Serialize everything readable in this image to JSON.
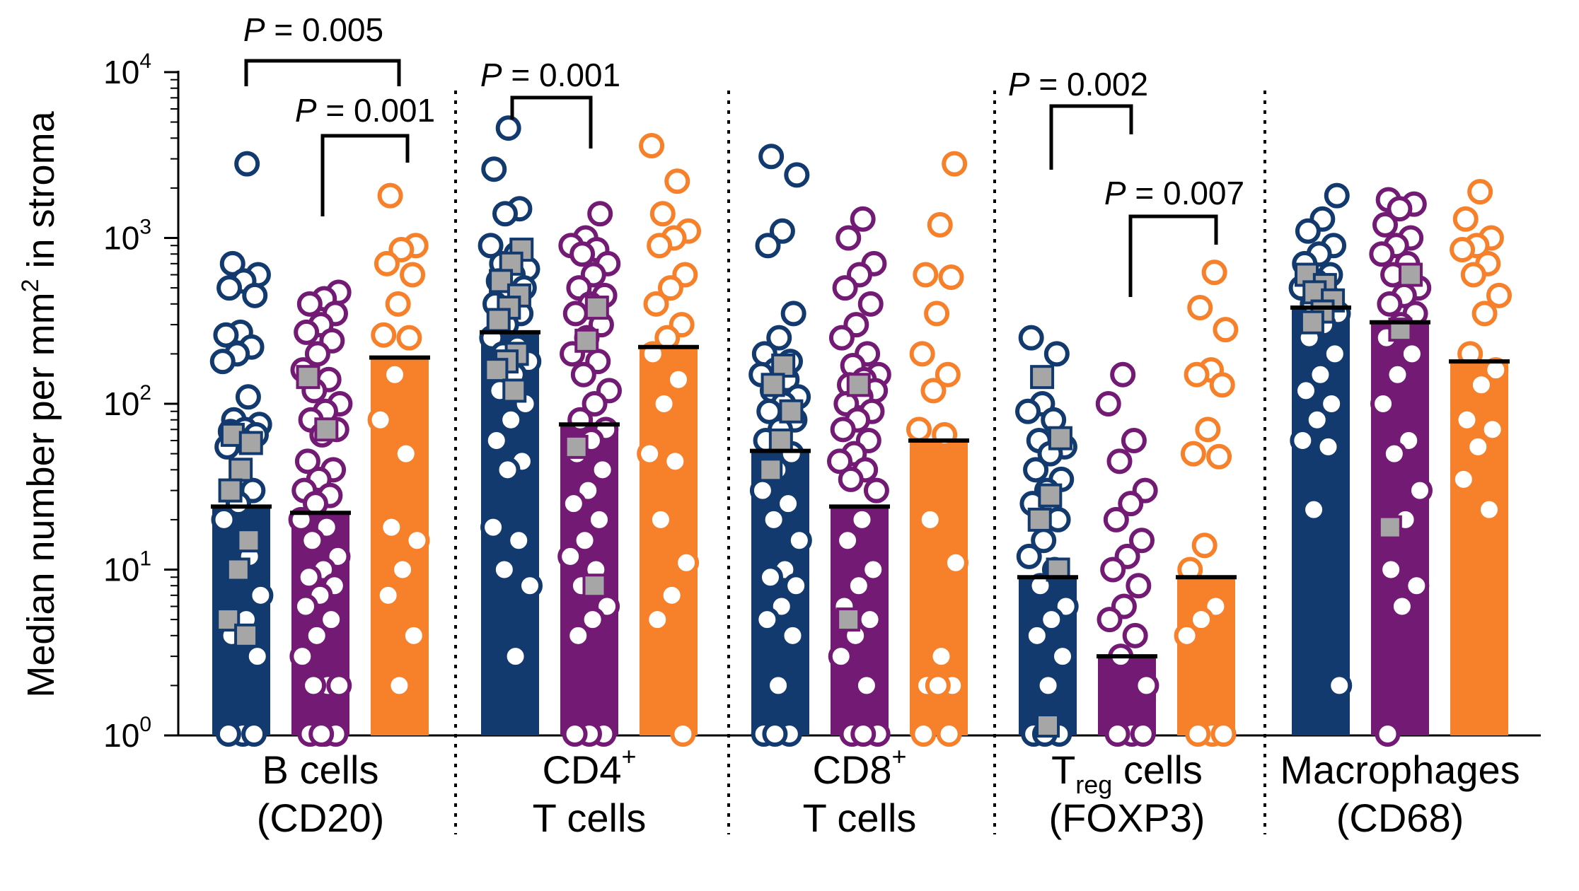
{
  "chart_data": {
    "type": "bar",
    "ylabel": "Median number per mm² in stroma",
    "ylabel_parts": {
      "pre": "Median number per mm",
      "sup": "2",
      "post": " in stroma"
    },
    "y_scale": "log",
    "ylim": [
      1,
      10000
    ],
    "y_ticks": [
      {
        "value": 1,
        "base": "10",
        "exp": "0"
      },
      {
        "value": 10,
        "base": "10",
        "exp": "1"
      },
      {
        "value": 100,
        "base": "10",
        "exp": "2"
      },
      {
        "value": 1000,
        "base": "10",
        "exp": "3"
      },
      {
        "value": 10000,
        "base": "10",
        "exp": "4"
      }
    ],
    "colors": {
      "navy": "#123a6e",
      "purple": "#731a75",
      "orange": "#f7802a",
      "square": "#a6a6a6",
      "median_line": "#000000"
    },
    "groups": [
      {
        "label_lines": [
          {
            "text": "B cells"
          },
          {
            "text": "(CD20)"
          }
        ],
        "bars": [
          {
            "color": "navy",
            "median": 24,
            "circles": [
              2800,
              700,
              600,
              550,
              500,
              450,
              270,
              260,
              220,
              200,
              180,
              110,
              80,
              75,
              70,
              68,
              65,
              60,
              55,
              30,
              25,
              20,
              12,
              10,
              7,
              5,
              4,
              3,
              1,
              1,
              1
            ],
            "squares": [
              65,
              58,
              40,
              30,
              15,
              10,
              5,
              4
            ]
          },
          {
            "color": "purple",
            "median": 22,
            "circles": [
              470,
              430,
              400,
              350,
              300,
              270,
              240,
              200,
              160,
              140,
              120,
              100,
              90,
              80,
              70,
              65,
              45,
              40,
              35,
              30,
              28,
              25,
              20,
              18,
              15,
              12,
              10,
              9,
              8,
              7,
              6,
              5,
              4,
              3,
              2,
              2,
              2,
              1,
              1,
              1,
              1
            ],
            "squares": [
              145,
              70
            ]
          },
          {
            "color": "orange",
            "median": 190,
            "circles": [
              1800,
              900,
              850,
              700,
              600,
              400,
              260,
              250,
              150,
              80,
              50,
              18,
              15,
              10,
              7,
              4,
              2
            ],
            "squares": []
          }
        ],
        "brackets": [
          {
            "text": "P = 0.005",
            "p_prefix": "P",
            "p_rest": " = 0.005",
            "from": 0,
            "to": 2
          },
          {
            "text": "P = 0.001",
            "p_prefix": "P",
            "p_rest": " = 0.001",
            "from": 1,
            "to": 2
          }
        ]
      },
      {
        "label_lines": [
          {
            "text": "CD4",
            "sup": "+"
          },
          {
            "text": "T cells"
          }
        ],
        "bars": [
          {
            "color": "navy",
            "median": 270,
            "circles": [
              4600,
              2600,
              1500,
              1400,
              900,
              800,
              700,
              650,
              600,
              550,
              500,
              450,
              400,
              350,
              300,
              250,
              220,
              200,
              180,
              150,
              120,
              100,
              80,
              60,
              45,
              40,
              18,
              15,
              10,
              8,
              3
            ],
            "squares": [
              850,
              700,
              550,
              450,
              380,
              320,
              200,
              180,
              160,
              120
            ]
          },
          {
            "color": "purple",
            "median": 75,
            "circles": [
              1400,
              1000,
              900,
              850,
              800,
              700,
              600,
              500,
              450,
              400,
              350,
              300,
              250,
              200,
              180,
              150,
              120,
              100,
              80,
              70,
              60,
              50,
              40,
              30,
              25,
              20,
              15,
              12,
              10,
              8,
              6,
              5,
              4,
              1,
              1,
              1
            ],
            "squares": [
              380,
              240,
              55,
              8
            ]
          },
          {
            "color": "orange",
            "median": 220,
            "circles": [
              3600,
              2200,
              1400,
              1100,
              1000,
              900,
              600,
              500,
              400,
              300,
              250,
              200,
              140,
              100,
              50,
              45,
              20,
              11,
              7,
              5,
              1
            ],
            "squares": []
          }
        ],
        "brackets": [
          {
            "text": "P = 0.001",
            "p_prefix": "P",
            "p_rest": " = 0.001",
            "from": 0,
            "to": 1
          }
        ]
      },
      {
        "label_lines": [
          {
            "text": "CD8",
            "sup": "+"
          },
          {
            "text": "T cells"
          }
        ],
        "bars": [
          {
            "color": "navy",
            "median": 52,
            "circles": [
              3100,
              2400,
              1100,
              900,
              350,
              250,
              200,
              180,
              160,
              150,
              140,
              120,
              110,
              100,
              90,
              80,
              70,
              60,
              50,
              40,
              30,
              25,
              20,
              15,
              10,
              9,
              8,
              6,
              5,
              4,
              2,
              1,
              1,
              1
            ],
            "squares": [
              170,
              130,
              90,
              60,
              40
            ]
          },
          {
            "color": "purple",
            "median": 24,
            "circles": [
              1300,
              1000,
              700,
              600,
              500,
              400,
              300,
              250,
              200,
              170,
              150,
              140,
              130,
              120,
              110,
              100,
              90,
              80,
              70,
              60,
              50,
              45,
              40,
              35,
              30,
              20,
              15,
              10,
              8,
              6,
              5,
              4,
              3,
              2,
              1,
              1,
              1
            ],
            "squares": [
              130,
              5
            ]
          },
          {
            "color": "orange",
            "median": 60,
            "circles": [
              2800,
              1200,
              600,
              580,
              350,
              200,
              150,
              120,
              70,
              65,
              20,
              11,
              3,
              2,
              2,
              2,
              1,
              1
            ],
            "squares": []
          }
        ],
        "brackets": []
      },
      {
        "label_lines": [
          {
            "text": "T",
            "sub": "reg",
            "rest": " cells"
          },
          {
            "text": "(FOXP3)"
          }
        ],
        "bars": [
          {
            "color": "navy",
            "median": 9,
            "circles": [
              250,
              200,
              100,
              90,
              80,
              60,
              55,
              50,
              40,
              35,
              30,
              25,
              20,
              15,
              12,
              10,
              8,
              6,
              5,
              4,
              3,
              2,
              1,
              1,
              1
            ],
            "squares": [
              145,
              62,
              28,
              20,
              10,
              1
            ]
          },
          {
            "color": "purple",
            "median": 3,
            "circles": [
              150,
              100,
              60,
              45,
              30,
              25,
              20,
              15,
              12,
              10,
              8,
              6,
              5,
              4,
              3,
              2,
              1,
              1,
              1
            ],
            "squares": []
          },
          {
            "color": "orange",
            "median": 9,
            "circles": [
              620,
              380,
              280,
              160,
              150,
              130,
              70,
              50,
              48,
              14,
              10,
              6,
              5,
              4,
              1,
              1,
              1
            ],
            "squares": []
          }
        ],
        "brackets": [
          {
            "text": "P = 0.002",
            "p_prefix": "P",
            "p_rest": " = 0.002",
            "from": 0,
            "to": 1
          },
          {
            "text": "P = 0.007",
            "p_prefix": "P",
            "p_rest": " = 0.007",
            "from": 1,
            "to": 2
          }
        ]
      },
      {
        "label_lines": [
          {
            "text": "Macrophages"
          },
          {
            "text": "(CD68)"
          }
        ],
        "bars": [
          {
            "color": "navy",
            "median": 380,
            "circles": [
              1800,
              1300,
              1100,
              900,
              800,
              700,
              600,
              550,
              500,
              450,
              400,
              350,
              300,
              250,
              200,
              150,
              120,
              100,
              80,
              60,
              55,
              23,
              2
            ],
            "squares": [
              600,
              520,
              470,
              420,
              360,
              310
            ]
          },
          {
            "color": "purple",
            "median": 310,
            "circles": [
              1700,
              1600,
              1500,
              1200,
              1000,
              900,
              800,
              700,
              600,
              500,
              450,
              400,
              350,
              300,
              250,
              200,
              150,
              100,
              60,
              50,
              30,
              20,
              10,
              8,
              6,
              1
            ],
            "squares": [
              600,
              280,
              18
            ]
          },
          {
            "color": "orange",
            "median": 180,
            "circles": [
              1900,
              1300,
              1000,
              900,
              850,
              700,
              600,
              450,
              350,
              200,
              160,
              130,
              80,
              70,
              55,
              35,
              23
            ],
            "squares": []
          }
        ],
        "brackets": []
      }
    ]
  }
}
